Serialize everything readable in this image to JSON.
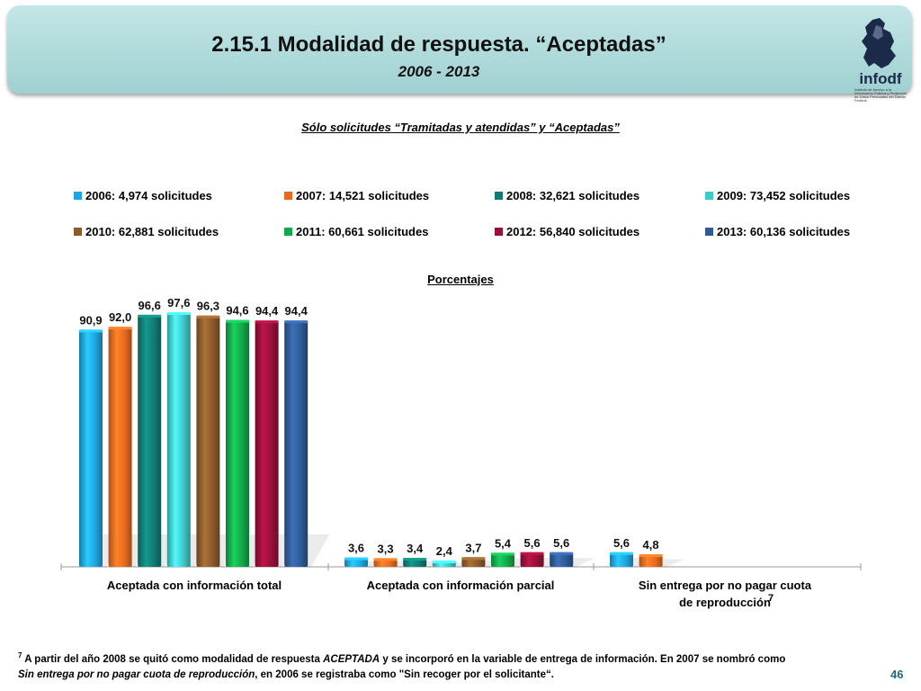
{
  "header": {
    "title": "2.15.1 Modalidad de respuesta. “Aceptadas”",
    "years": "2006 - 2013",
    "logo_text": "infodf",
    "logo_small": "Instituto de Acceso a la Información Pública y Protección de Datos Personales del Distrito Federal"
  },
  "subtitle": "Sólo solicitudes “Tramitadas y atendidas” y “Aceptadas”",
  "porcentajes_label": "Porcentajes",
  "colors": {
    "header_bg": "#a8d8d8",
    "series": [
      "#1fa4dd",
      "#e8691f",
      "#117a72",
      "#3fc8c8",
      "#8a5a2b",
      "#13a84a",
      "#97103a",
      "#2f5a95"
    ]
  },
  "chart_data": {
    "type": "bar",
    "categories": [
      "Aceptada con información total",
      "Aceptada con información parcial",
      "Sin entrega por no pagar cuota de reproducción"
    ],
    "category_footnote": [
      "",
      "",
      "7"
    ],
    "series": [
      {
        "name": "2006: 4,974 solicitudes",
        "values": [
          90.9,
          3.6,
          5.6
        ],
        "labels": [
          "90,9",
          "3,6",
          "5,6"
        ]
      },
      {
        "name": "2007: 14,521 solicitudes",
        "values": [
          92.0,
          3.3,
          4.8
        ],
        "labels": [
          "92,0",
          "3,3",
          "4,8"
        ]
      },
      {
        "name": "2008: 32,621 solicitudes",
        "values": [
          96.6,
          3.4,
          null
        ],
        "labels": [
          "96,6",
          "3,4",
          ""
        ]
      },
      {
        "name": "2009: 73,452 solicitudes",
        "values": [
          97.6,
          2.4,
          null
        ],
        "labels": [
          "97,6",
          "2,4",
          ""
        ]
      },
      {
        "name": "2010: 62,881 solicitudes",
        "values": [
          96.3,
          3.7,
          null
        ],
        "labels": [
          "96,3",
          "3,7",
          ""
        ]
      },
      {
        "name": "2011: 60,661 solicitudes",
        "values": [
          94.6,
          5.4,
          null
        ],
        "labels": [
          "94,6",
          "5,4",
          ""
        ]
      },
      {
        "name": "2012: 56,840 solicitudes",
        "values": [
          94.4,
          5.6,
          null
        ],
        "labels": [
          "94,4",
          "5,6",
          ""
        ]
      },
      {
        "name": "2013: 60,136 solicitudes",
        "values": [
          94.4,
          5.6,
          null
        ],
        "labels": [
          "94,4",
          "5,6",
          ""
        ]
      }
    ],
    "ylim": [
      0,
      100
    ],
    "legend_position": "top",
    "grid": false
  },
  "footnote": {
    "mark": "7",
    "line1_a": " A partir del año 2008 se quitó como modalidad de respuesta ",
    "line1_b": "ACEPTADA",
    "line1_c": " y se incorporó en la variable de entrega de información. En 2007 se nombró como",
    "line2_a": "Sin entrega por no pagar cuota de reproducción",
    "line2_b": ", en 2006 se registraba como \"Sin recoger por el solicitante“."
  },
  "page_number": "46"
}
